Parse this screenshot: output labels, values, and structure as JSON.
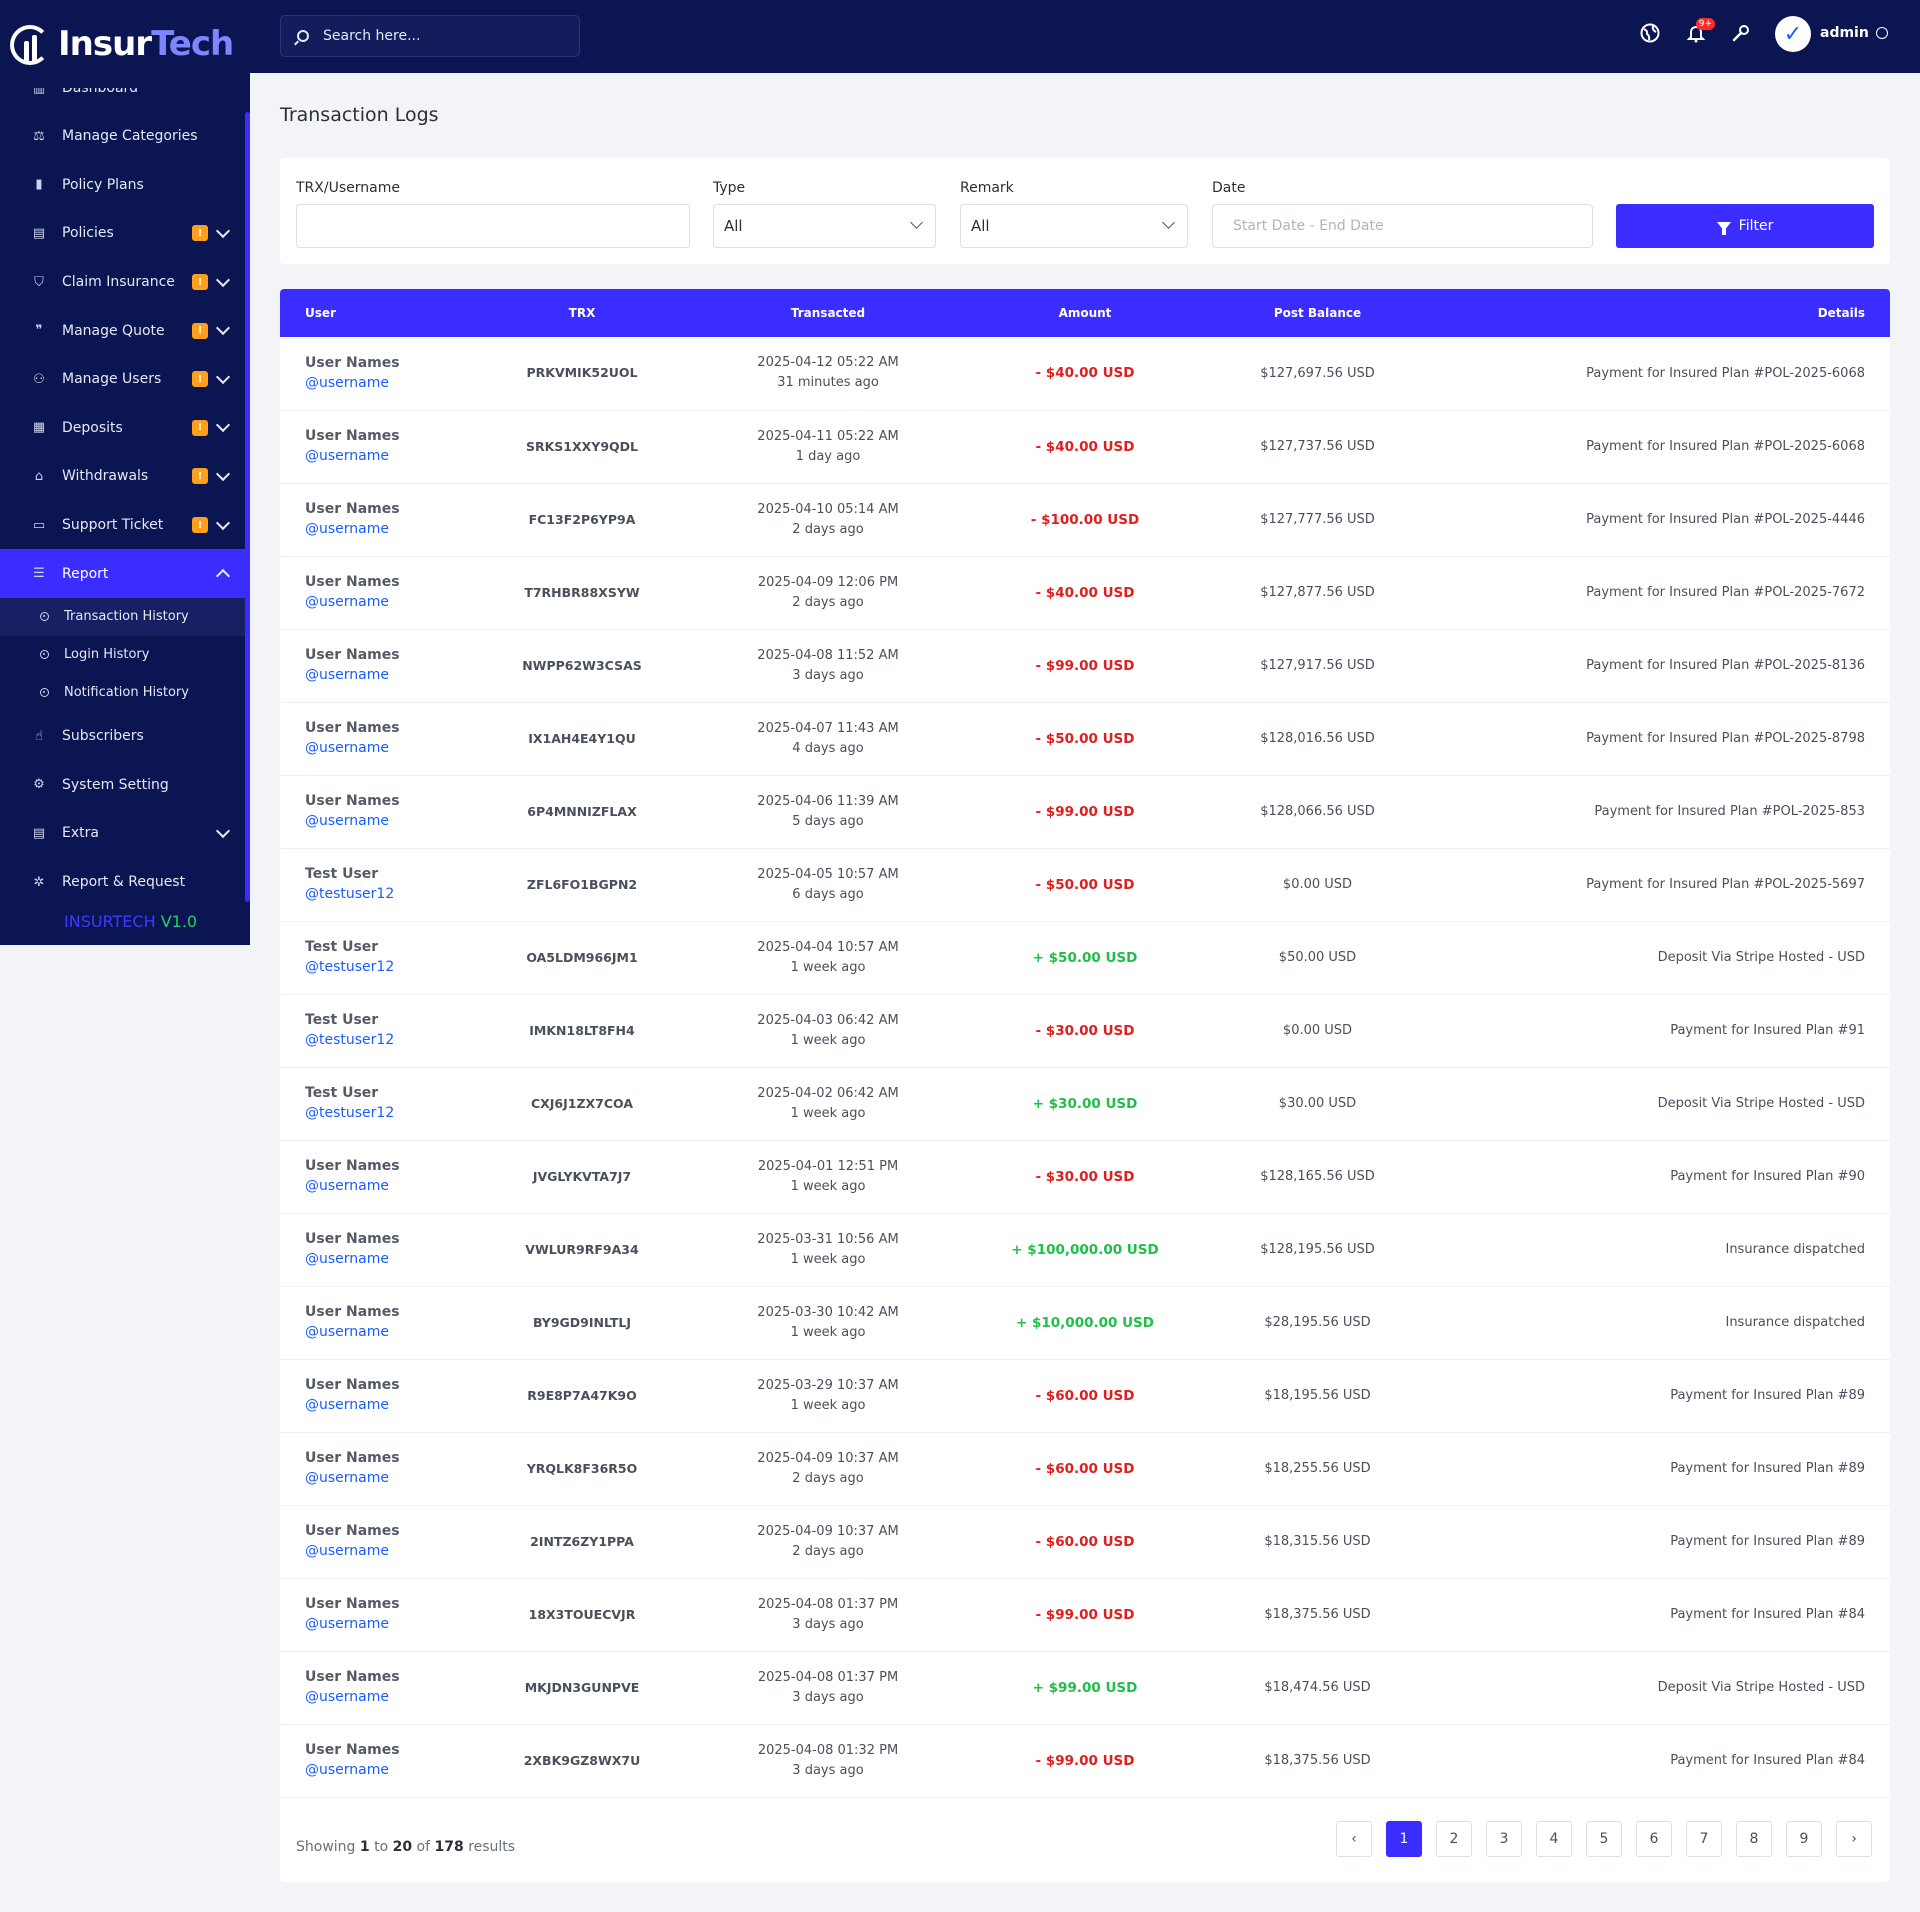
{
  "brand": {
    "part1": "Insur",
    "part2": "Tech"
  },
  "sidebar": {
    "partial_item": {
      "label": "Dashboard",
      "icon": "dashboard-icon"
    },
    "items": [
      {
        "label": "Manage Categories",
        "icon": "categories-icon",
        "badge": "",
        "chevron": false
      },
      {
        "label": "Policy Plans",
        "icon": "chart-bar-icon",
        "badge": "",
        "chevron": false
      },
      {
        "label": "Policies",
        "icon": "document-icon",
        "badge": "!",
        "chevron": true
      },
      {
        "label": "Claim Insurance",
        "icon": "shield-icon",
        "badge": "!",
        "chevron": true
      },
      {
        "label": "Manage Quote",
        "icon": "quote-icon",
        "badge": "!",
        "chevron": true
      },
      {
        "label": "Manage Users",
        "icon": "users-icon",
        "badge": "!",
        "chevron": true
      },
      {
        "label": "Deposits",
        "icon": "deposit-icon",
        "badge": "!",
        "chevron": true
      },
      {
        "label": "Withdrawals",
        "icon": "bank-icon",
        "badge": "!",
        "chevron": true
      },
      {
        "label": "Support Ticket",
        "icon": "ticket-icon",
        "badge": "!",
        "chevron": true
      }
    ],
    "report": {
      "label": "Report",
      "icon": "list-icon"
    },
    "report_sub": [
      {
        "label": "Transaction History"
      },
      {
        "label": "Login History"
      },
      {
        "label": "Notification History"
      }
    ],
    "items_after": [
      {
        "label": "Subscribers",
        "icon": "thumbs-up-icon",
        "chevron": false
      },
      {
        "label": "System Setting",
        "icon": "settings-icon",
        "chevron": false
      },
      {
        "label": "Extra",
        "icon": "extra-icon",
        "chevron": true
      },
      {
        "label": "Report & Request",
        "icon": "bug-icon",
        "chevron": false
      }
    ],
    "version_part1": "INSURTECH",
    "version_part2": "V1.0"
  },
  "topbar": {
    "search_placeholder": "Search here...",
    "notif_count": "9+",
    "admin_name": "admin"
  },
  "page": {
    "title": "Transaction Logs"
  },
  "filters": {
    "trx_label": "TRX/Username",
    "trx_value": "",
    "type_label": "Type",
    "type_value": "All",
    "remark_label": "Remark",
    "remark_value": "All",
    "date_label": "Date",
    "date_placeholder": "Start Date - End Date",
    "filter_button": "Filter"
  },
  "table": {
    "headers": [
      "User",
      "TRX",
      "Transacted",
      "Amount",
      "Post Balance",
      "Details"
    ],
    "rows": [
      {
        "name": "User Names",
        "handle": "@username",
        "trx": "PRKVMIK52UOL",
        "date": "2025-04-12 05:22 AM",
        "ago": "31 minutes ago",
        "amount": "- $40.00 USD",
        "sign": "neg",
        "balance": "$127,697.56 USD",
        "details": "Payment for Insured Plan #POL-2025-6068"
      },
      {
        "name": "User Names",
        "handle": "@username",
        "trx": "SRKS1XXY9QDL",
        "date": "2025-04-11 05:22 AM",
        "ago": "1 day ago",
        "amount": "- $40.00 USD",
        "sign": "neg",
        "balance": "$127,737.56 USD",
        "details": "Payment for Insured Plan #POL-2025-6068"
      },
      {
        "name": "User Names",
        "handle": "@username",
        "trx": "FC13F2P6YP9A",
        "date": "2025-04-10 05:14 AM",
        "ago": "2 days ago",
        "amount": "- $100.00 USD",
        "sign": "neg",
        "balance": "$127,777.56 USD",
        "details": "Payment for Insured Plan #POL-2025-4446"
      },
      {
        "name": "User Names",
        "handle": "@username",
        "trx": "T7RHBR88XSYW",
        "date": "2025-04-09 12:06 PM",
        "ago": "2 days ago",
        "amount": "- $40.00 USD",
        "sign": "neg",
        "balance": "$127,877.56 USD",
        "details": "Payment for Insured Plan #POL-2025-7672"
      },
      {
        "name": "User Names",
        "handle": "@username",
        "trx": "NWPP62W3CSAS",
        "date": "2025-04-08 11:52 AM",
        "ago": "3 days ago",
        "amount": "- $99.00 USD",
        "sign": "neg",
        "balance": "$127,917.56 USD",
        "details": "Payment for Insured Plan #POL-2025-8136"
      },
      {
        "name": "User Names",
        "handle": "@username",
        "trx": "IX1AH4E4Y1QU",
        "date": "2025-04-07 11:43 AM",
        "ago": "4 days ago",
        "amount": "- $50.00 USD",
        "sign": "neg",
        "balance": "$128,016.56 USD",
        "details": "Payment for Insured Plan #POL-2025-8798"
      },
      {
        "name": "User Names",
        "handle": "@username",
        "trx": "6P4MNNIZFLAX",
        "date": "2025-04-06 11:39 AM",
        "ago": "5 days ago",
        "amount": "- $99.00 USD",
        "sign": "neg",
        "balance": "$128,066.56 USD",
        "details": "Payment for Insured Plan #POL-2025-853"
      },
      {
        "name": "Test User",
        "handle": "@testuser12",
        "trx": "ZFL6FO1BGPN2",
        "date": "2025-04-05 10:57 AM",
        "ago": "6 days ago",
        "amount": "- $50.00 USD",
        "sign": "neg",
        "balance": "$0.00 USD",
        "details": "Payment for Insured Plan #POL-2025-5697"
      },
      {
        "name": "Test User",
        "handle": "@testuser12",
        "trx": "OA5LDM966JM1",
        "date": "2025-04-04 10:57 AM",
        "ago": "1 week ago",
        "amount": "+ $50.00 USD",
        "sign": "pos",
        "balance": "$50.00 USD",
        "details": "Deposit Via Stripe Hosted - USD"
      },
      {
        "name": "Test User",
        "handle": "@testuser12",
        "trx": "IMKN18LT8FH4",
        "date": "2025-04-03 06:42 AM",
        "ago": "1 week ago",
        "amount": "- $30.00 USD",
        "sign": "neg",
        "balance": "$0.00 USD",
        "details": "Payment for Insured Plan #91"
      },
      {
        "name": "Test User",
        "handle": "@testuser12",
        "trx": "CXJ6J1ZX7COA",
        "date": "2025-04-02 06:42 AM",
        "ago": "1 week ago",
        "amount": "+ $30.00 USD",
        "sign": "pos",
        "balance": "$30.00 USD",
        "details": "Deposit Via Stripe Hosted - USD"
      },
      {
        "name": "User Names",
        "handle": "@username",
        "trx": "JVGLYKVTA7J7",
        "date": "2025-04-01 12:51 PM",
        "ago": "1 week ago",
        "amount": "- $30.00 USD",
        "sign": "neg",
        "balance": "$128,165.56 USD",
        "details": "Payment for Insured Plan #90"
      },
      {
        "name": "User Names",
        "handle": "@username",
        "trx": "VWLUR9RF9A34",
        "date": "2025-03-31 10:56 AM",
        "ago": "1 week ago",
        "amount": "+ $100,000.00 USD",
        "sign": "pos",
        "balance": "$128,195.56 USD",
        "details": "Insurance dispatched"
      },
      {
        "name": "User Names",
        "handle": "@username",
        "trx": "BY9GD9INLTLJ",
        "date": "2025-03-30 10:42 AM",
        "ago": "1 week ago",
        "amount": "+ $10,000.00 USD",
        "sign": "pos",
        "balance": "$28,195.56 USD",
        "details": "Insurance dispatched"
      },
      {
        "name": "User Names",
        "handle": "@username",
        "trx": "R9E8P7A47K9O",
        "date": "2025-03-29 10:37 AM",
        "ago": "1 week ago",
        "amount": "- $60.00 USD",
        "sign": "neg",
        "balance": "$18,195.56 USD",
        "details": "Payment for Insured Plan #89"
      },
      {
        "name": "User Names",
        "handle": "@username",
        "trx": "YRQLK8F36R5O",
        "date": "2025-04-09 10:37 AM",
        "ago": "2 days ago",
        "amount": "- $60.00 USD",
        "sign": "neg",
        "balance": "$18,255.56 USD",
        "details": "Payment for Insured Plan #89"
      },
      {
        "name": "User Names",
        "handle": "@username",
        "trx": "2INTZ6ZY1PPA",
        "date": "2025-04-09 10:37 AM",
        "ago": "2 days ago",
        "amount": "- $60.00 USD",
        "sign": "neg",
        "balance": "$18,315.56 USD",
        "details": "Payment for Insured Plan #89"
      },
      {
        "name": "User Names",
        "handle": "@username",
        "trx": "18X3TOUECVJR",
        "date": "2025-04-08 01:37 PM",
        "ago": "3 days ago",
        "amount": "- $99.00 USD",
        "sign": "neg",
        "balance": "$18,375.56 USD",
        "details": "Payment for Insured Plan #84"
      },
      {
        "name": "User Names",
        "handle": "@username",
        "trx": "MKJDN3GUNPVE",
        "date": "2025-04-08 01:37 PM",
        "ago": "3 days ago",
        "amount": "+ $99.00 USD",
        "sign": "pos",
        "balance": "$18,474.56 USD",
        "details": "Deposit Via Stripe Hosted - USD"
      },
      {
        "name": "User Names",
        "handle": "@username",
        "trx": "2XBK9GZ8WX7U",
        "date": "2025-04-08 01:32 PM",
        "ago": "3 days ago",
        "amount": "- $99.00 USD",
        "sign": "neg",
        "balance": "$18,375.56 USD",
        "details": "Payment for Insured Plan #84"
      }
    ]
  },
  "pagination": {
    "showing": "Showing",
    "from": "1",
    "to_word": "to",
    "to": "20",
    "of_word": "of",
    "total": "178",
    "results_word": "results",
    "prev": "‹",
    "next": "›",
    "pages": [
      "1",
      "2",
      "3",
      "4",
      "5",
      "6",
      "7",
      "8",
      "9"
    ],
    "current": "1"
  },
  "colors": {
    "sidebar_bg": "#0b1551",
    "accent": "#3b2dff",
    "negative": "#e01e1e",
    "positive": "#1fbf4a",
    "badge": "#ff9f1a"
  }
}
